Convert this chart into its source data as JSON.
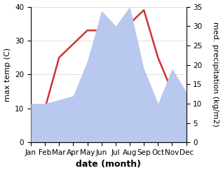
{
  "months": [
    "Jan",
    "Feb",
    "Mar",
    "Apr",
    "May",
    "Jun",
    "Jul",
    "Aug",
    "Sep",
    "Oct",
    "Nov",
    "Dec"
  ],
  "temperature": [
    10,
    10,
    25,
    29,
    33,
    33,
    32,
    35,
    39,
    25,
    15,
    13
  ],
  "precipitation": [
    10,
    10,
    11,
    12,
    21,
    34,
    30,
    35,
    19,
    10,
    19,
    13
  ],
  "temp_color": "#cc3333",
  "precip_color": "#b8c8ee",
  "temp_ylim": [
    0,
    40
  ],
  "precip_ylim": [
    0,
    35
  ],
  "temp_yticks": [
    0,
    10,
    20,
    30,
    40
  ],
  "precip_yticks": [
    0,
    5,
    10,
    15,
    20,
    25,
    30,
    35
  ],
  "xlabel": "date (month)",
  "ylabel_left": "max temp (C)",
  "ylabel_right": "med. precipitation (kg/m2)",
  "xlabel_fontsize": 9,
  "ylabel_fontsize": 8,
  "tick_fontsize": 7.5,
  "line_width": 1.8
}
